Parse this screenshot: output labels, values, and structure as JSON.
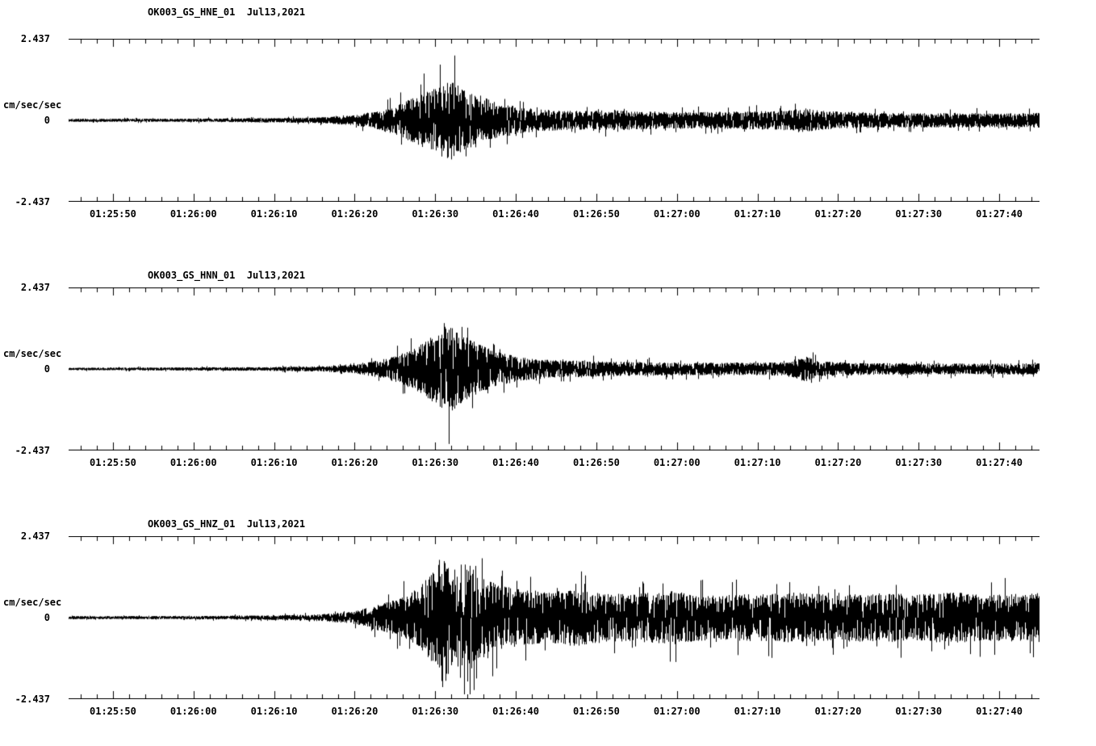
{
  "page": {
    "background": "#ffffff",
    "trace_color": "#000000",
    "axis_color": "#000000"
  },
  "time_axis": {
    "span_sec": 120.5,
    "first_tick_offset_sec": 5.5,
    "major_tick_interval_sec": 10,
    "minor_tick_interval_sec": 2,
    "labels": [
      "01:25:50",
      "01:26:00",
      "01:26:10",
      "01:26:20",
      "01:26:30",
      "01:26:40",
      "01:26:50",
      "01:27:00",
      "01:27:10",
      "01:27:20",
      "01:27:30",
      "01:27:40"
    ]
  },
  "chart_data": [
    {
      "type": "line",
      "title": "OK003_GS_HNE_01  Jul13,2021",
      "ylabel": "cm/sec/sec",
      "ylim": [
        -2.437,
        2.437
      ],
      "yticks": [
        "2.437",
        "0",
        "-2.437"
      ],
      "x_tick_labels": [
        "01:25:50",
        "01:26:00",
        "01:26:10",
        "01:26:20",
        "01:26:30",
        "01:26:40",
        "01:26:50",
        "01:27:00",
        "01:27:10",
        "01:27:20",
        "01:27:30",
        "01:27:40"
      ],
      "grid": false,
      "legend": false,
      "seed": 11,
      "envelope_t_amp": [
        [
          0,
          0.05
        ],
        [
          14,
          0.05
        ],
        [
          24,
          0.07
        ],
        [
          31,
          0.09
        ],
        [
          35.5,
          0.16
        ],
        [
          38,
          0.28
        ],
        [
          41,
          0.5
        ],
        [
          43.5,
          0.8
        ],
        [
          45.5,
          1.05
        ],
        [
          47.5,
          1.3
        ],
        [
          49,
          1.0
        ],
        [
          51,
          0.8
        ],
        [
          53,
          0.58
        ],
        [
          56,
          0.42
        ],
        [
          59,
          0.34
        ],
        [
          63,
          0.3
        ],
        [
          68,
          0.32
        ],
        [
          73,
          0.28
        ],
        [
          78,
          0.26
        ],
        [
          83,
          0.28
        ],
        [
          88,
          0.3
        ],
        [
          91.5,
          0.38
        ],
        [
          93.5,
          0.3
        ],
        [
          98,
          0.25
        ],
        [
          104,
          0.22
        ],
        [
          110,
          0.24
        ],
        [
          116,
          0.22
        ],
        [
          120.5,
          0.24
        ]
      ]
    },
    {
      "type": "line",
      "title": "OK003_GS_HNN_01  Jul13,2021",
      "ylabel": "cm/sec/sec",
      "ylim": [
        -2.437,
        2.437
      ],
      "yticks": [
        "2.437",
        "0",
        "-2.437"
      ],
      "x_tick_labels": [
        "01:25:50",
        "01:26:00",
        "01:26:10",
        "01:26:20",
        "01:26:30",
        "01:26:40",
        "01:26:50",
        "01:27:00",
        "01:27:10",
        "01:27:20",
        "01:27:30",
        "01:27:40"
      ],
      "grid": false,
      "legend": false,
      "seed": 29,
      "envelope_t_amp": [
        [
          0,
          0.04
        ],
        [
          14,
          0.05
        ],
        [
          24,
          0.06
        ],
        [
          31,
          0.08
        ],
        [
          35.5,
          0.14
        ],
        [
          38,
          0.25
        ],
        [
          41,
          0.45
        ],
        [
          43.5,
          0.75
        ],
        [
          45.5,
          1.1
        ],
        [
          47,
          1.45
        ],
        [
          48.5,
          1.15
        ],
        [
          50.5,
          0.85
        ],
        [
          53,
          0.55
        ],
        [
          56,
          0.38
        ],
        [
          60,
          0.28
        ],
        [
          65,
          0.25
        ],
        [
          71,
          0.22
        ],
        [
          77,
          0.2
        ],
        [
          84,
          0.2
        ],
        [
          89,
          0.22
        ],
        [
          91.5,
          0.42
        ],
        [
          93,
          0.24
        ],
        [
          99,
          0.19
        ],
        [
          106,
          0.18
        ],
        [
          113,
          0.17
        ],
        [
          120.5,
          0.18
        ]
      ]
    },
    {
      "type": "line",
      "title": "OK003_GS_HNZ_01  Jul13,2021",
      "ylabel": "cm/sec/sec",
      "ylim": [
        -2.437,
        2.437
      ],
      "yticks": [
        "2.437",
        "0",
        "-2.437"
      ],
      "x_tick_labels": [
        "01:25:50",
        "01:26:00",
        "01:26:10",
        "01:26:20",
        "01:26:30",
        "01:26:40",
        "01:26:50",
        "01:27:00",
        "01:27:10",
        "01:27:20",
        "01:27:30",
        "01:27:40"
      ],
      "grid": false,
      "legend": false,
      "seed": 47,
      "envelope_t_amp": [
        [
          0,
          0.05
        ],
        [
          14,
          0.05
        ],
        [
          24,
          0.07
        ],
        [
          31,
          0.1
        ],
        [
          35.5,
          0.2
        ],
        [
          38,
          0.38
        ],
        [
          41,
          0.6
        ],
        [
          43.5,
          0.95
        ],
        [
          45.5,
          1.55
        ],
        [
          46.5,
          2.3
        ],
        [
          47.8,
          1.5
        ],
        [
          49.5,
          1.85
        ],
        [
          51,
          1.35
        ],
        [
          53,
          1.05
        ],
        [
          56,
          0.9
        ],
        [
          60,
          0.82
        ],
        [
          63,
          0.92
        ],
        [
          66,
          0.78
        ],
        [
          70,
          0.75
        ],
        [
          75,
          0.85
        ],
        [
          80,
          0.7
        ],
        [
          85,
          0.75
        ],
        [
          90,
          0.8
        ],
        [
          95,
          0.72
        ],
        [
          100,
          0.8
        ],
        [
          105,
          0.74
        ],
        [
          110,
          0.8
        ],
        [
          115,
          0.74
        ],
        [
          120.5,
          0.78
        ]
      ]
    }
  ]
}
